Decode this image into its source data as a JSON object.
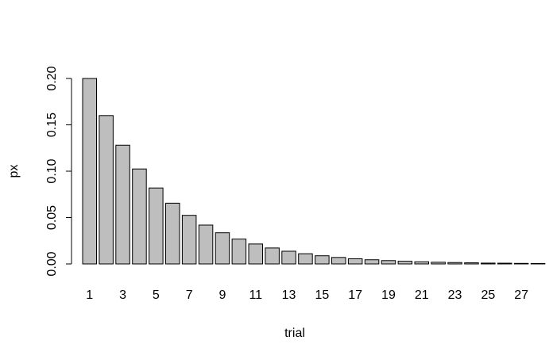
{
  "chart_data": {
    "type": "bar",
    "x_label": "trial",
    "y_label": "px",
    "categories": [
      "1",
      null,
      "3",
      null,
      "5",
      null,
      "7",
      null,
      "9",
      null,
      "11",
      null,
      "13",
      null,
      "15",
      null,
      "17",
      null,
      "19",
      null,
      "21",
      null,
      "23",
      null,
      "25",
      null,
      "27",
      null
    ],
    "values": [
      0.2,
      0.16,
      0.128,
      0.1024,
      0.0819,
      0.0655,
      0.0524,
      0.0419,
      0.0336,
      0.0268,
      0.0215,
      0.0172,
      0.0137,
      0.011,
      0.0088,
      0.007,
      0.0056,
      0.0045,
      0.0036,
      0.0029,
      0.0023,
      0.0018,
      0.0015,
      0.0012,
      0.0009,
      0.0008,
      0.0006,
      0.0005
    ],
    "color": "#bebebe",
    "ylim": [
      0,
      0.2
    ],
    "yticks": [
      {
        "value": 0,
        "label": "0.00"
      },
      {
        "value": 0.05,
        "label": "0.05"
      },
      {
        "value": 0.1,
        "label": "0.10"
      },
      {
        "value": 0.15,
        "label": "0.15"
      },
      {
        "value": 0.2,
        "label": "0.20"
      }
    ],
    "grid": false
  }
}
